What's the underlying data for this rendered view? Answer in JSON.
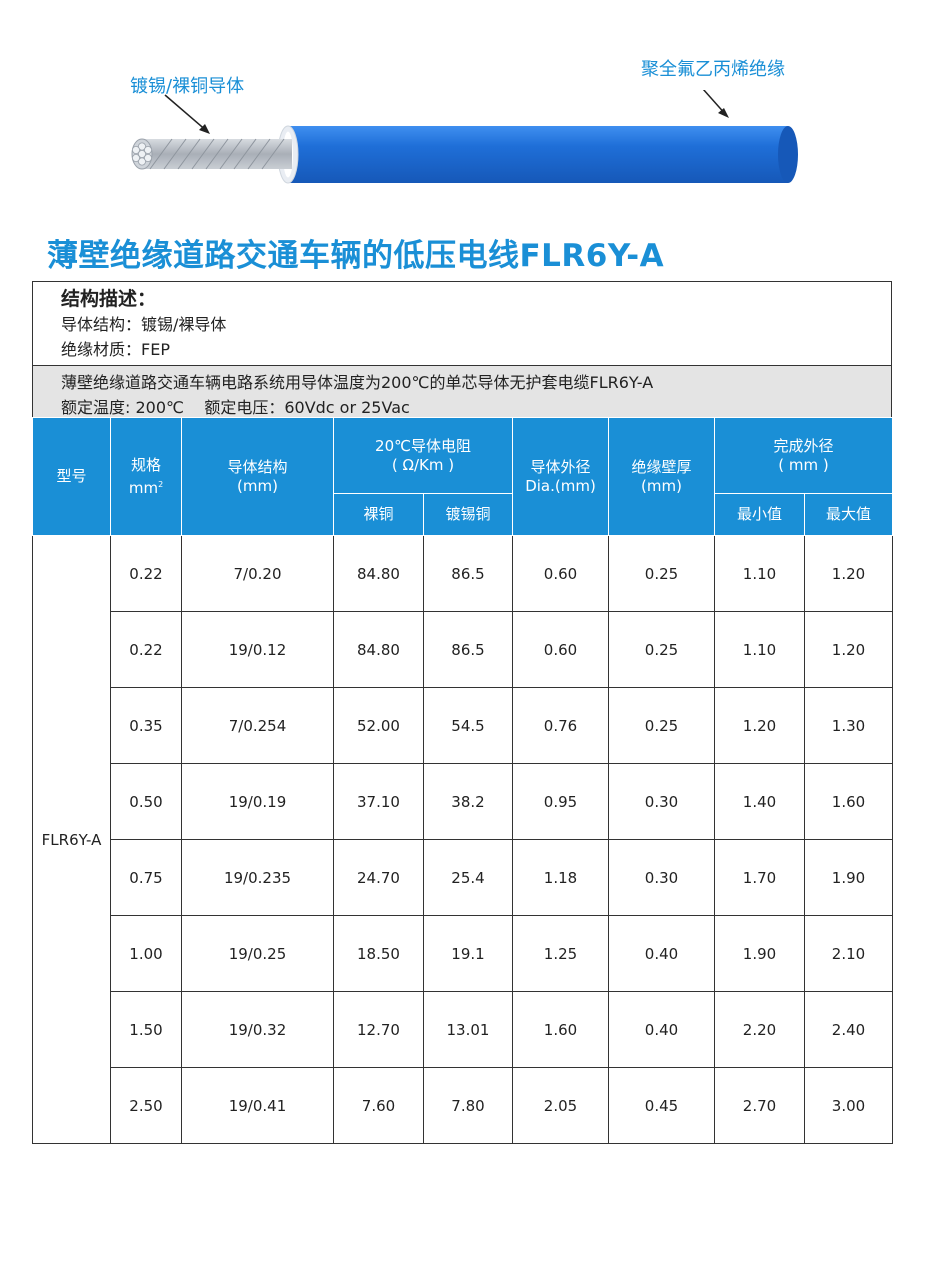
{
  "diagram": {
    "conductor_label": "镀锡/裸铜导体",
    "insulation_label": "聚全氟乙丙烯绝缘",
    "colors": {
      "insulation": "#1f6fd8",
      "conductor": "#b9bec5",
      "accent": "#1a8fd6"
    }
  },
  "title": "薄壁绝缘道路交通车辆的低压电线FLR6Y-A",
  "description": {
    "heading": "结构描述：",
    "conductor": "导体结构：镀锡/裸导体",
    "insulation": "绝缘材质：FEP",
    "application": "薄壁绝缘道路交通车辆电路系统用导体温度为200℃的单芯导体无护套电缆FLR6Y-A",
    "ratings": "额定温度: 200℃    额定电压：60Vdc or 25Vac"
  },
  "table": {
    "headers": {
      "model": "型号",
      "size": "规格",
      "size_unit": "mm",
      "size_sup": "2",
      "structure": "导体结构",
      "structure_unit": "(mm)",
      "resistance": "20℃导体电阻",
      "resistance_unit": "( Ω/Km )",
      "bare_copper": "裸铜",
      "tinned_copper": "镀锡铜",
      "conductor_od": "导体外径",
      "conductor_od_unit": "Dia.(mm)",
      "wall": "绝缘壁厚",
      "wall_unit": "(mm)",
      "finished_od": "完成外径",
      "finished_od_unit": "( mm )",
      "min": "最小值",
      "max": "最大值"
    },
    "model": "FLR6Y-A",
    "rows": [
      {
        "size": "0.22",
        "structure": "7/0.20",
        "bare": "84.80",
        "tinned": "86.5",
        "dia": "0.60",
        "wall": "0.25",
        "min": "1.10",
        "max": "1.20"
      },
      {
        "size": "0.22",
        "structure": "19/0.12",
        "bare": "84.80",
        "tinned": "86.5",
        "dia": "0.60",
        "wall": "0.25",
        "min": "1.10",
        "max": "1.20"
      },
      {
        "size": "0.35",
        "structure": "7/0.254",
        "bare": "52.00",
        "tinned": "54.5",
        "dia": "0.76",
        "wall": "0.25",
        "min": "1.20",
        "max": "1.30"
      },
      {
        "size": "0.50",
        "structure": "19/0.19",
        "bare": "37.10",
        "tinned": "38.2",
        "dia": "0.95",
        "wall": "0.30",
        "min": "1.40",
        "max": "1.60"
      },
      {
        "size": "0.75",
        "structure": "19/0.235",
        "bare": "24.70",
        "tinned": "25.4",
        "dia": "1.18",
        "wall": "0.30",
        "min": "1.70",
        "max": "1.90"
      },
      {
        "size": "1.00",
        "structure": "19/0.25",
        "bare": "18.50",
        "tinned": "19.1",
        "dia": "1.25",
        "wall": "0.40",
        "min": "1.90",
        "max": "2.10"
      },
      {
        "size": "1.50",
        "structure": "19/0.32",
        "bare": "12.70",
        "tinned": "13.01",
        "dia": "1.60",
        "wall": "0.40",
        "min": "2.20",
        "max": "2.40"
      },
      {
        "size": "2.50",
        "structure": "19/0.41",
        "bare": "7.60",
        "tinned": "7.80",
        "dia": "2.05",
        "wall": "0.45",
        "min": "2.70",
        "max": "3.00"
      }
    ]
  }
}
